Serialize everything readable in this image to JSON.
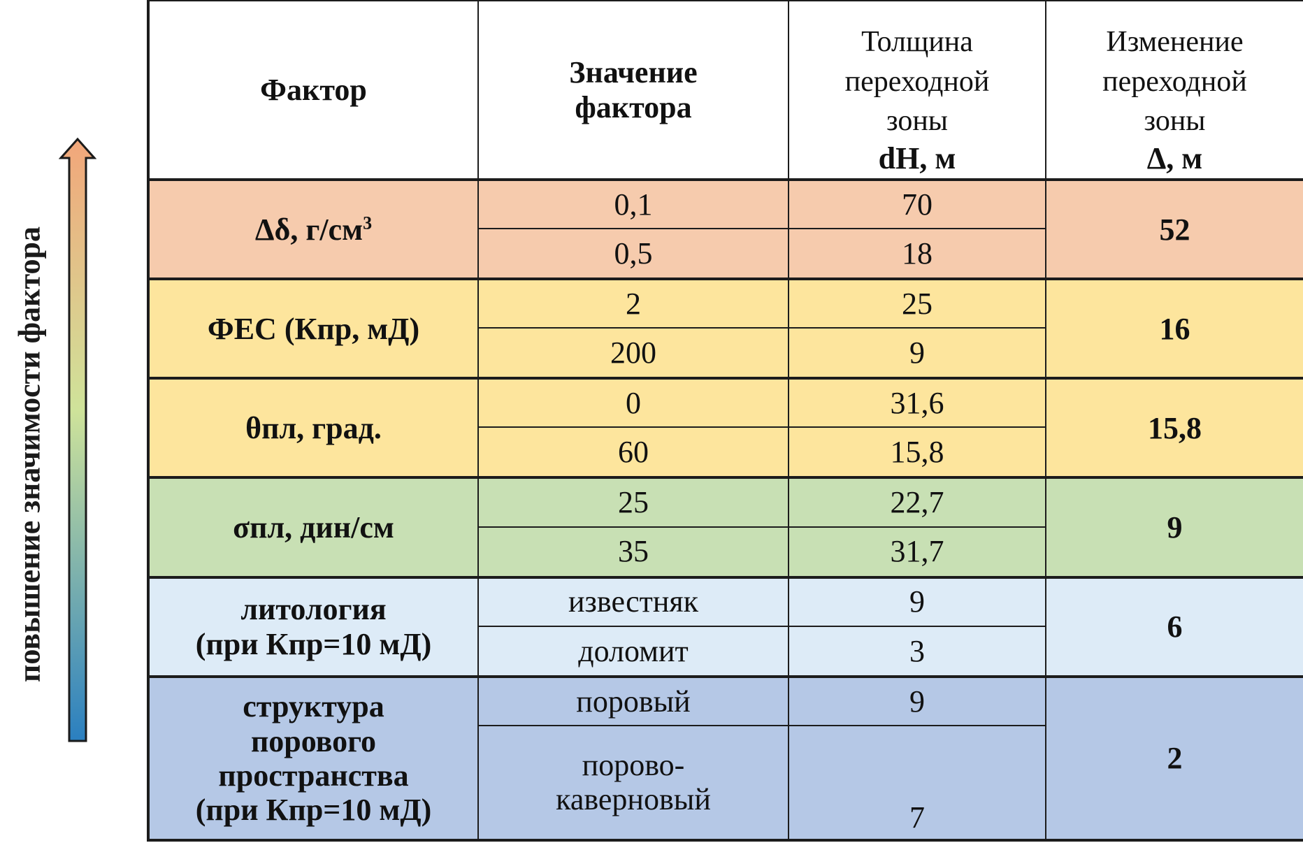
{
  "side_label": "повышение значимости фактора",
  "colors": {
    "row_density": "#f6cbad",
    "row_fes": "#fde59d",
    "row_theta": "#fde59d",
    "row_sigma": "#c8e0b4",
    "row_litho": "#ddebf7",
    "row_pore": "#b5c8e6",
    "arrow_top": "#f2a67a",
    "arrow_mid": "#cfe39a",
    "arrow_bottom": "#2a7fc0"
  },
  "header": {
    "factor": "Фактор",
    "value": "Значение фактора",
    "thickness_lines": [
      "Толщина",
      "переходной",
      "зоны"
    ],
    "thickness_unit": "dH, м",
    "change_lines": [
      "Изменение",
      "переходной",
      "зоны"
    ],
    "change_unit": "Δ, м"
  },
  "rows": [
    {
      "factor": "Δδ, г/см",
      "factor_sup": "3",
      "values": [
        "0,1",
        "0,5"
      ],
      "dh": [
        "70",
        "18"
      ],
      "delta": "52"
    },
    {
      "factor": "ФЕС (Кпр, мД)",
      "values": [
        "2",
        "200"
      ],
      "dh": [
        "25",
        "9"
      ],
      "delta": "16"
    },
    {
      "factor": "θпл, град.",
      "values": [
        "0",
        "60"
      ],
      "dh": [
        "31,6",
        "15,8"
      ],
      "delta": "15,8"
    },
    {
      "factor": "σпл, дин/см",
      "values": [
        "25",
        "35"
      ],
      "dh": [
        "22,7",
        "31,7"
      ],
      "delta": "9"
    },
    {
      "factor_lines": [
        "литология",
        "(при Кпр=10 мД)"
      ],
      "values": [
        "известняк",
        "доломит"
      ],
      "dh": [
        "9",
        "3"
      ],
      "delta": "6"
    },
    {
      "factor_lines": [
        "структура",
        "порового",
        "пространства",
        "(при Кпр=10 мД)"
      ],
      "values": [
        "поровый",
        "порово-каверновый"
      ],
      "dh": [
        "9",
        "7"
      ],
      "delta": "2"
    }
  ]
}
